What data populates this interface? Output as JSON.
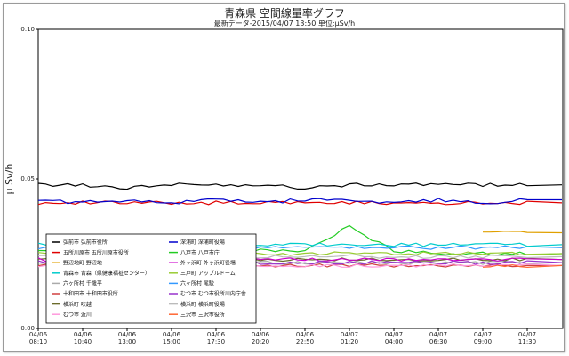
{
  "chart_data": {
    "type": "line",
    "title": "青森県 空間線量率グラフ",
    "subtitle": "最新データ-2015/04/07 13:50 単位:μSv/h",
    "ylabel": "μ Sv/h",
    "ylim": [
      0,
      0.1
    ],
    "yticks": [
      "0.00",
      "0.05",
      "0.10"
    ],
    "grid": false,
    "legend_position": "lower-left",
    "xticks": [
      {
        "date": "04/06",
        "time": "08:10"
      },
      {
        "date": "04/06",
        "time": "10:40"
      },
      {
        "date": "04/06",
        "time": "13:00"
      },
      {
        "date": "04/06",
        "time": "15:00"
      },
      {
        "date": "04/06",
        "time": "17:30"
      },
      {
        "date": "04/06",
        "time": "20:20"
      },
      {
        "date": "04/06",
        "time": "22:50"
      },
      {
        "date": "04/07",
        "time": "01:20"
      },
      {
        "date": "04/07",
        "time": "04:00"
      },
      {
        "date": "04/07",
        "time": "06:30"
      },
      {
        "date": "04/07",
        "time": "09:00"
      },
      {
        "date": "04/07",
        "time": "11:30"
      }
    ],
    "series": [
      {
        "name": "弘前市 弘前市役所",
        "color": "#000000",
        "values": [
          0.048,
          0.048,
          0.047,
          0.048,
          0.048,
          0.048,
          0.047,
          0.048,
          0.048,
          0.048,
          0.048,
          0.048
        ]
      },
      {
        "name": "五所川原市 五所川原市役所",
        "color": "#e00000",
        "values": [
          0.042,
          0.042,
          0.042,
          0.042,
          0.042,
          0.042,
          0.042,
          0.042,
          0.042,
          0.042,
          0.042,
          0.042
        ]
      },
      {
        "name": "野辺地町 野辺地",
        "color": "#e0a000",
        "values": [
          null,
          null,
          null,
          null,
          null,
          null,
          null,
          null,
          null,
          null,
          0.032,
          0.032
        ]
      },
      {
        "name": "六ヶ所村 千歳平",
        "color": "#aaaaaa",
        "values": [
          0.022,
          0.022,
          0.022,
          0.022,
          0.022,
          0.022,
          0.022,
          0.022,
          0.022,
          0.022,
          0.022,
          0.022
        ]
      },
      {
        "name": "十和田市 十和田市役所",
        "color": "#d04040",
        "values": [
          0.021,
          0.021,
          0.021,
          0.021,
          0.021,
          0.021,
          0.021,
          0.021,
          0.021,
          0.021,
          0.021,
          0.021
        ]
      },
      {
        "name": "横浜町 吹越",
        "color": "#6b6b2a",
        "values": [
          0.023,
          0.023,
          0.023,
          0.023,
          0.023,
          0.023,
          0.023,
          0.023,
          0.023,
          0.023,
          0.023,
          0.023
        ]
      },
      {
        "name": "むつ市 近川",
        "color": "#ff99dd",
        "values": [
          0.021,
          0.021,
          0.021,
          0.021,
          0.021,
          0.021,
          0.021,
          0.021,
          0.021,
          0.021,
          0.021,
          0.021
        ]
      },
      {
        "name": "深浦町 深浦町役場",
        "color": "#0000cc",
        "values": [
          0.043,
          0.042,
          0.043,
          0.042,
          0.043,
          0.042,
          0.043,
          0.043,
          0.042,
          0.043,
          0.042,
          0.043
        ]
      },
      {
        "name": "八戸市 八戸市庁",
        "color": "#22cc22",
        "values": [
          0.026,
          0.026,
          0.026,
          0.026,
          0.026,
          0.026,
          0.026,
          0.034,
          0.026,
          0.025,
          0.025,
          0.025
        ]
      },
      {
        "name": "外ヶ浜町 外ヶ浜町役場",
        "color": "#cc00cc",
        "values": [
          0.023,
          0.023,
          0.023,
          0.023,
          0.023,
          0.023,
          0.023,
          0.023,
          0.023,
          0.023,
          0.023,
          0.023
        ]
      },
      {
        "name": "三戸町 アップルドーム",
        "color": "#99cc33",
        "values": [
          0.025,
          0.025,
          0.025,
          0.025,
          0.025,
          0.025,
          0.025,
          0.025,
          0.025,
          0.025,
          0.025,
          0.025
        ]
      },
      {
        "name": "六ヶ所村 尾駮",
        "color": "#3399ff",
        "values": [
          0.027,
          0.027,
          0.027,
          0.027,
          0.027,
          0.027,
          0.027,
          0.027,
          0.027,
          0.027,
          0.027,
          0.027
        ]
      },
      {
        "name": "むつ市 むつ市役所川内庁舎",
        "color": "#9933cc",
        "values": [
          0.022,
          0.022,
          0.022,
          0.022,
          0.022,
          0.022,
          0.022,
          0.022,
          0.022,
          0.022,
          0.022,
          0.022
        ]
      },
      {
        "name": "横浜町 横浜町役場",
        "color": "#bbbbbb",
        "values": [
          0.024,
          0.024,
          0.024,
          0.024,
          0.024,
          0.024,
          0.024,
          0.024,
          0.024,
          0.024,
          0.024,
          0.024
        ]
      },
      {
        "name": "三沢市 三沢市役所",
        "color": "#ff6633",
        "values": [
          null,
          null,
          null,
          null,
          null,
          null,
          null,
          null,
          null,
          null,
          0.021,
          0.021
        ]
      },
      {
        "name": "青森市 青森（県健康福祉センター）",
        "color": "#00cccc",
        "values": [
          0.028,
          0.028,
          0.028,
          0.028,
          0.028,
          0.028,
          0.028,
          0.028,
          0.028,
          0.028,
          0.028,
          0.028
        ]
      }
    ],
    "legend_order": [
      0,
      1,
      2,
      15,
      3,
      4,
      5,
      6,
      7,
      8,
      9,
      10,
      11,
      12,
      13,
      14
    ]
  }
}
